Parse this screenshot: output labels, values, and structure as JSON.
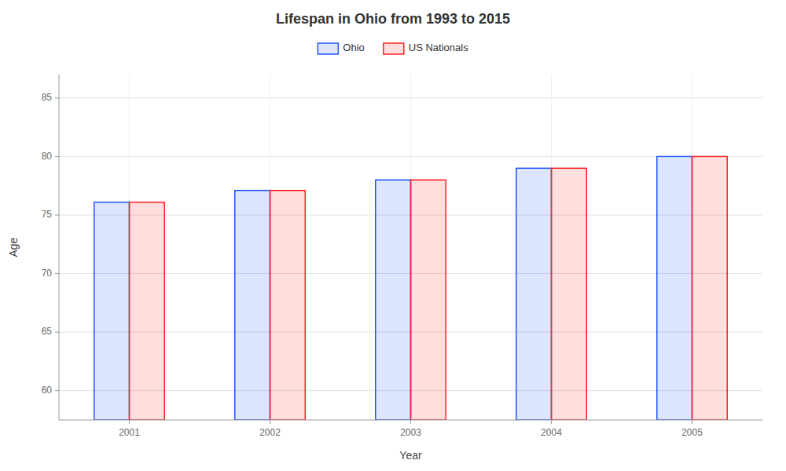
{
  "chart_data": {
    "type": "bar",
    "title": "Lifespan in Ohio from 1993 to 2015",
    "x_label": "Year",
    "y_label": "Age",
    "categories": [
      "2001",
      "2002",
      "2003",
      "2004",
      "2005"
    ],
    "series": [
      {
        "name": "Ohio",
        "color": "#2255ff",
        "values": [
          76.1,
          77.1,
          78.0,
          79.0,
          80.0
        ]
      },
      {
        "name": "US Nationals",
        "color": "#ff2222",
        "values": [
          76.1,
          77.1,
          78.0,
          79.0,
          80.0
        ]
      }
    ],
    "ylim": [
      57.5,
      87
    ],
    "yticks": [
      60,
      65,
      70,
      75,
      80,
      85
    ],
    "grid": true,
    "legend": "top"
  }
}
